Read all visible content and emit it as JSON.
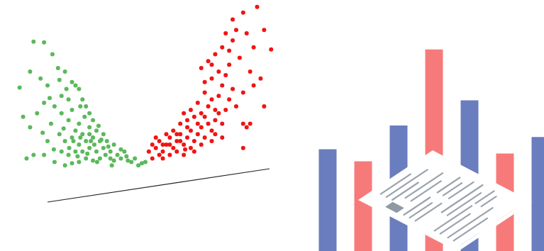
{
  "chart_data": [
    {
      "type": "scatter",
      "xlim": [
        0,
        400
      ],
      "ylim": [
        0,
        300
      ],
      "grid": false,
      "tick_labels": false,
      "marker": "circle",
      "series": [
        {
          "color": "#5cb85c",
          "x": [
            45,
            60,
            72,
            25,
            40,
            55,
            65,
            80,
            90,
            100,
            85,
            95,
            105,
            110,
            115,
            75,
            60,
            50,
            40,
            70,
            85,
            100,
            120,
            125,
            130,
            110,
            95,
            105,
            115,
            125,
            135,
            145,
            150,
            140,
            130,
            120,
            110,
            100,
            90,
            85,
            95,
            105,
            115,
            125,
            135,
            145,
            155,
            160,
            165,
            170,
            175,
            180,
            185,
            190,
            200,
            155,
            140,
            130,
            120,
            110,
            100,
            90,
            75,
            60,
            35,
            65,
            125,
            138,
            118,
            102,
            148,
            160,
            132,
            112,
            96,
            82,
            142,
            152,
            122,
            108,
            170,
            178,
            88,
            74,
            45,
            30,
            58,
            92,
            68,
            82,
            112,
            127,
            136,
            157,
            195,
            205
          ],
          "values": [
            243,
            242,
            225,
            177,
            200,
            190,
            180,
            205,
            200,
            185,
            165,
            160,
            180,
            175,
            160,
            150,
            155,
            140,
            120,
            125,
            140,
            145,
            150,
            140,
            130,
            125,
            130,
            115,
            110,
            120,
            115,
            110,
            100,
            100,
            105,
            100,
            95,
            105,
            100,
            85,
            80,
            85,
            85,
            90,
            85,
            90,
            85,
            95,
            80,
            75,
            85,
            72,
            70,
            75,
            68,
            75,
            75,
            72,
            75,
            70,
            68,
            65,
            70,
            80,
            75,
            100,
            110,
            122,
            135,
            100,
            80,
            72,
            95,
            105,
            90,
            110,
            102,
            92,
            82,
            78,
            88,
            78,
            118,
            88,
            80,
            135,
            112,
            175,
            162,
            188,
            150,
            100,
            70,
            65,
            65,
            70
          ]
        },
        {
          "color": "#f01414",
          "x": [
            210,
            215,
            220,
            225,
            230,
            235,
            240,
            245,
            250,
            255,
            260,
            265,
            270,
            275,
            280,
            285,
            290,
            295,
            300,
            305,
            250,
            260,
            240,
            230,
            245,
            255,
            265,
            275,
            285,
            295,
            300,
            290,
            280,
            270,
            260,
            305,
            310,
            315,
            320,
            310,
            300,
            295,
            305,
            315,
            325,
            330,
            320,
            335,
            345,
            365,
            330,
            350,
            340,
            355,
            345,
            360,
            370,
            375,
            350,
            345,
            335,
            325,
            315,
            300,
            285,
            270,
            255,
            240,
            225,
            215,
            235,
            280,
            290,
            310,
            320,
            330,
            325,
            345,
            355,
            385,
            375,
            360,
            290,
            285,
            300,
            265,
            250,
            275,
            220,
            305,
            315,
            230,
            262
          ],
          "values": [
            85,
            95,
            90,
            100,
            85,
            95,
            105,
            90,
            100,
            110,
            95,
            105,
            115,
            100,
            110,
            120,
            105,
            125,
            115,
            130,
            85,
            80,
            80,
            95,
            115,
            125,
            130,
            135,
            140,
            150,
            160,
            170,
            155,
            145,
            140,
            145,
            165,
            180,
            195,
            200,
            210,
            215,
            225,
            235,
            230,
            245,
            255,
            260,
            285,
            293,
            275,
            255,
            220,
            200,
            170,
            180,
            190,
            150,
            120,
            125,
            150,
            160,
            125,
            100,
            95,
            90,
            100,
            95,
            80,
            75,
            110,
            125,
            135,
            140,
            145,
            175,
            210,
            90,
            125,
            232,
            260,
            235,
            185,
            205,
            190,
            120,
            110,
            85,
            105,
            110,
            105,
            75,
            88
          ]
        }
      ]
    },
    {
      "type": "bar",
      "categories": [
        null,
        null,
        null,
        null,
        null,
        null,
        null
      ],
      "values": [
        142,
        125,
        175,
        281,
        210,
        136,
        159
      ],
      "colors": [
        "#6a7dbe",
        "#f77a7a",
        "#6a7dbe",
        "#f77a7a",
        "#6a7dbe",
        "#f77a7a",
        "#6a7dbe"
      ],
      "ylim": [
        0,
        350
      ],
      "grid": false,
      "tick_labels": false
    }
  ]
}
